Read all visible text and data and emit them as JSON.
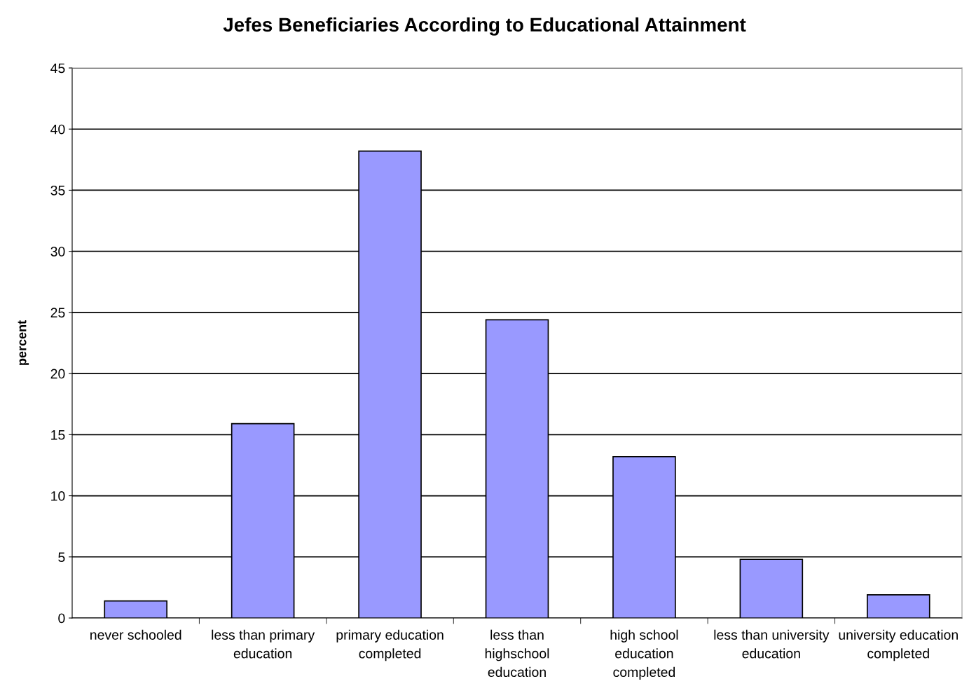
{
  "chart_data": {
    "type": "bar",
    "title": "Jefes Beneficiaries According to Educational Attainment",
    "ylabel": "percent",
    "categories": [
      "never schooled",
      "less than primary\neducation",
      "primary education\ncompleted",
      "less than\nhighschool\neducation",
      "high school\neducation\ncompleted",
      "less than university\neducation",
      "university education\ncompleted"
    ],
    "values": [
      1.4,
      15.9,
      38.2,
      24.4,
      13.2,
      4.8,
      1.9
    ],
    "color": "#9999ff",
    "ylim": [
      0,
      45
    ],
    "yticks": [
      0,
      5,
      10,
      15,
      20,
      25,
      30,
      35,
      40,
      45
    ],
    "grid": "y",
    "legend": false
  }
}
